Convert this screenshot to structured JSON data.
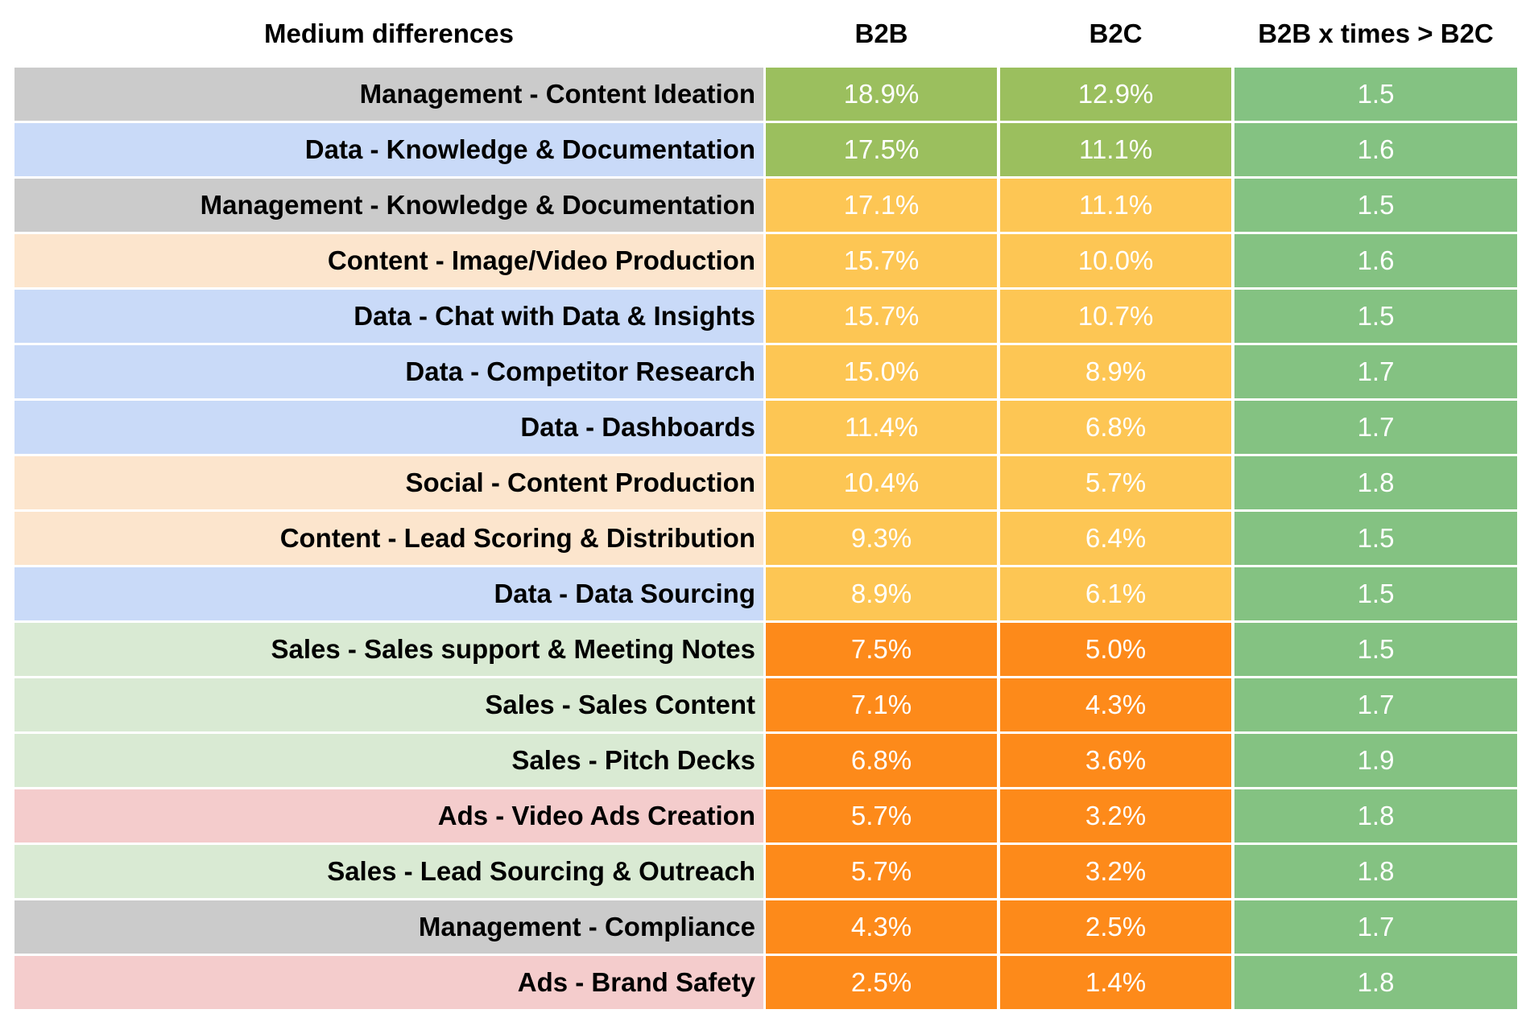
{
  "header": {
    "title": "Medium differences",
    "col_b2b": "B2B",
    "col_b2c": "B2C",
    "col_ratio": "B2B x times > B2C"
  },
  "colors": {
    "management": "#cbcbcb",
    "data": "#c9daf8",
    "content": "#fce5cd",
    "social": "#fce5cd",
    "sales": "#d9ead3",
    "ads": "#f4cccc",
    "high": "#9bbf5e",
    "mid": "#fdc654",
    "low": "#fd8a1a",
    "ratio": "#84c282"
  },
  "rows": [
    {
      "label": "Management - Content Ideation",
      "category": "management",
      "b2b": "18.9%",
      "b2c": "12.9%",
      "ratio": "1.5",
      "level": "high"
    },
    {
      "label": "Data - Knowledge & Documentation",
      "category": "data",
      "b2b": "17.5%",
      "b2c": "11.1%",
      "ratio": "1.6",
      "level": "high"
    },
    {
      "label": "Management - Knowledge & Documentation",
      "category": "management",
      "b2b": "17.1%",
      "b2c": "11.1%",
      "ratio": "1.5",
      "level": "mid"
    },
    {
      "label": "Content - Image/Video Production",
      "category": "content",
      "b2b": "15.7%",
      "b2c": "10.0%",
      "ratio": "1.6",
      "level": "mid"
    },
    {
      "label": "Data - Chat with Data & Insights",
      "category": "data",
      "b2b": "15.7%",
      "b2c": "10.7%",
      "ratio": "1.5",
      "level": "mid"
    },
    {
      "label": "Data - Competitor Research",
      "category": "data",
      "b2b": "15.0%",
      "b2c": "8.9%",
      "ratio": "1.7",
      "level": "mid"
    },
    {
      "label": "Data - Dashboards",
      "category": "data",
      "b2b": "11.4%",
      "b2c": "6.8%",
      "ratio": "1.7",
      "level": "mid"
    },
    {
      "label": "Social - Content Production",
      "category": "social",
      "b2b": "10.4%",
      "b2c": "5.7%",
      "ratio": "1.8",
      "level": "mid"
    },
    {
      "label": "Content - Lead Scoring & Distribution",
      "category": "content",
      "b2b": "9.3%",
      "b2c": "6.4%",
      "ratio": "1.5",
      "level": "mid"
    },
    {
      "label": "Data - Data Sourcing",
      "category": "data",
      "b2b": "8.9%",
      "b2c": "6.1%",
      "ratio": "1.5",
      "level": "mid"
    },
    {
      "label": "Sales - Sales support & Meeting Notes",
      "category": "sales",
      "b2b": "7.5%",
      "b2c": "5.0%",
      "ratio": "1.5",
      "level": "low"
    },
    {
      "label": "Sales - Sales Content",
      "category": "sales",
      "b2b": "7.1%",
      "b2c": "4.3%",
      "ratio": "1.7",
      "level": "low"
    },
    {
      "label": "Sales - Pitch Decks",
      "category": "sales",
      "b2b": "6.8%",
      "b2c": "3.6%",
      "ratio": "1.9",
      "level": "low"
    },
    {
      "label": "Ads - Video Ads Creation",
      "category": "ads",
      "b2b": "5.7%",
      "b2c": "3.2%",
      "ratio": "1.8",
      "level": "low"
    },
    {
      "label": "Sales - Lead Sourcing & Outreach",
      "category": "sales",
      "b2b": "5.7%",
      "b2c": "3.2%",
      "ratio": "1.8",
      "level": "low"
    },
    {
      "label": "Management - Compliance",
      "category": "management",
      "b2b": "4.3%",
      "b2c": "2.5%",
      "ratio": "1.7",
      "level": "low"
    },
    {
      "label": "Ads - Brand Safety",
      "category": "ads",
      "b2b": "2.5%",
      "b2c": "1.4%",
      "ratio": "1.8",
      "level": "low"
    }
  ]
}
